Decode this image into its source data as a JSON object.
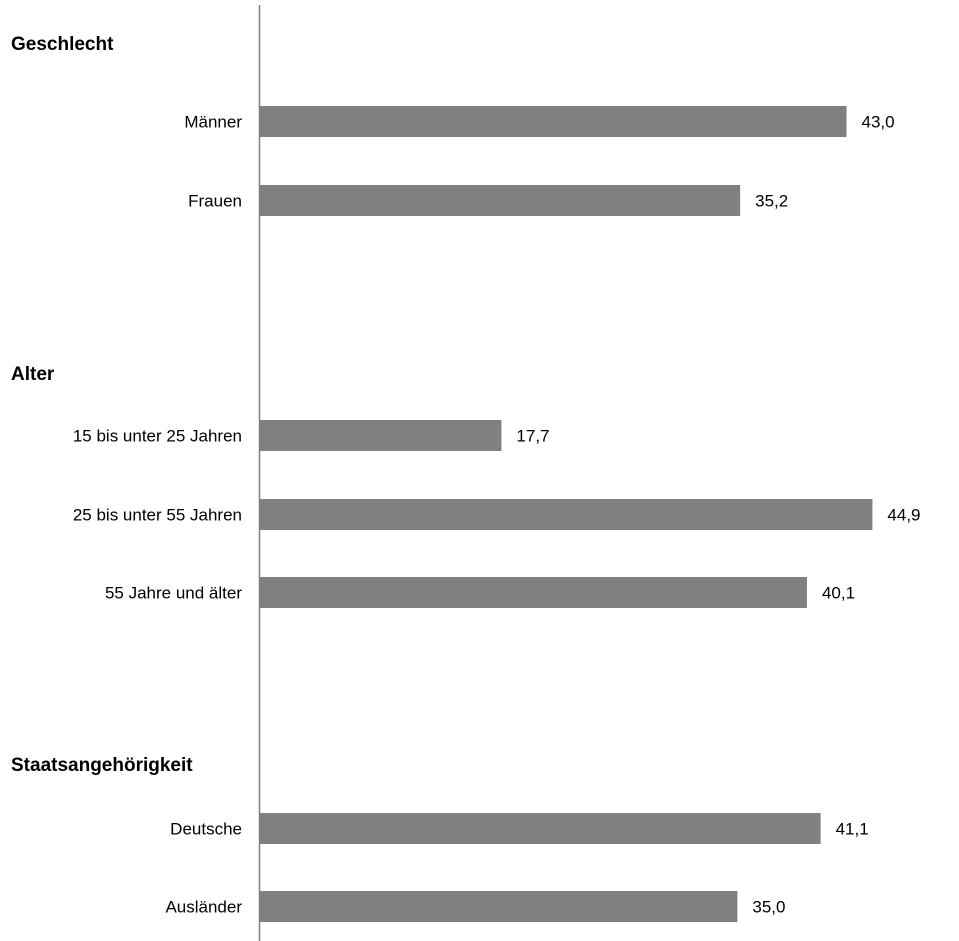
{
  "chart_data": {
    "type": "bar",
    "orientation": "horizontal",
    "bar_color": "#808080",
    "axis_color": "#808080",
    "groups": [
      {
        "title": "Geschlecht",
        "categories": [
          "Männer",
          "Frauen"
        ],
        "values": [
          43.0,
          35.2
        ],
        "value_labels": [
          "43,0",
          "35,2"
        ]
      },
      {
        "title": "Alter",
        "categories": [
          "15 bis unter 25 Jahren",
          "25 bis unter 55 Jahren",
          "55 Jahre und älter"
        ],
        "values": [
          17.7,
          44.9,
          40.1
        ],
        "value_labels": [
          "17,7",
          "44,9",
          "40,1"
        ]
      },
      {
        "title": "Staatsangehörigkeit",
        "categories": [
          "Deutsche",
          "Ausländer"
        ],
        "values": [
          41.1,
          35.0
        ],
        "value_labels": [
          "41,1",
          "35,0"
        ]
      }
    ]
  }
}
